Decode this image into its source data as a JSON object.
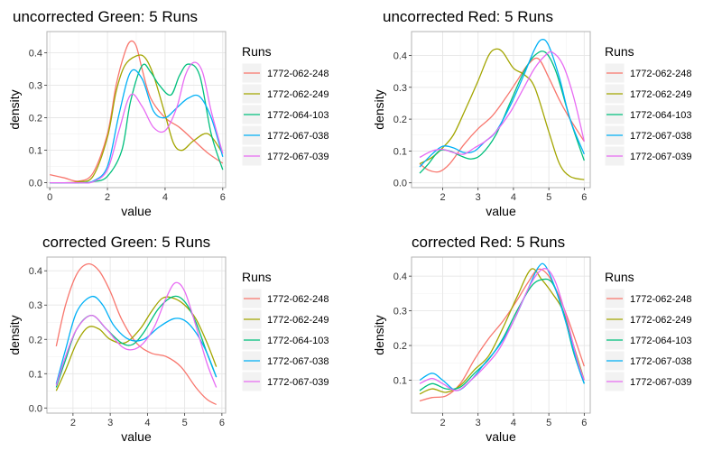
{
  "chart_data": [
    {
      "type": "line",
      "title": "uncorrected Green: 5 Runs",
      "xlabel": "value",
      "ylabel": "density",
      "xlim": [
        -0.1,
        6.1
      ],
      "ylim": [
        -0.015,
        0.465
      ],
      "xticks": [
        0,
        2,
        4,
        6
      ],
      "yticks": [
        0.0,
        0.1,
        0.2,
        0.3,
        0.4
      ],
      "ytick_labels": [
        "0.0",
        "0.1",
        "0.2",
        "0.3",
        "0.4"
      ],
      "grid": true,
      "legend_title": "Runs",
      "legend_position": "right",
      "series": [
        {
          "name": "1772-062-248",
          "color": "#F8766D",
          "x": [
            0,
            0.5,
            1,
            1.5,
            2,
            2.3,
            2.6,
            2.8,
            3,
            3.2,
            3.5,
            4,
            4.5,
            5,
            5.5,
            6
          ],
          "y": [
            0.025,
            0.015,
            0.005,
            0.03,
            0.15,
            0.3,
            0.4,
            0.435,
            0.42,
            0.35,
            0.26,
            0.2,
            0.17,
            0.13,
            0.09,
            0.06
          ]
        },
        {
          "name": "1772-062-249",
          "color": "#A3A500",
          "x": [
            0,
            0.5,
            1,
            1.5,
            2,
            2.3,
            2.6,
            3,
            3.3,
            3.6,
            4,
            4.3,
            4.6,
            5,
            5.5,
            6
          ],
          "y": [
            0,
            0,
            0.003,
            0.02,
            0.14,
            0.28,
            0.36,
            0.39,
            0.385,
            0.33,
            0.21,
            0.12,
            0.1,
            0.13,
            0.15,
            0.09
          ]
        },
        {
          "name": "1772-064-103",
          "color": "#00BF7D",
          "x": [
            0,
            1,
            1.5,
            2,
            2.5,
            2.8,
            3.2,
            3.5,
            3.8,
            4.2,
            4.5,
            4.8,
            5.2,
            5.6,
            6
          ],
          "y": [
            0,
            0,
            0.003,
            0.02,
            0.1,
            0.25,
            0.36,
            0.34,
            0.3,
            0.27,
            0.33,
            0.365,
            0.33,
            0.15,
            0.04
          ]
        },
        {
          "name": "1772-067-038",
          "color": "#00B0F6",
          "x": [
            0,
            1,
            1.5,
            2,
            2.4,
            2.8,
            3.2,
            3.6,
            4,
            4.4,
            4.8,
            5.2,
            5.6,
            6
          ],
          "y": [
            0,
            0,
            0.005,
            0.05,
            0.21,
            0.34,
            0.32,
            0.22,
            0.2,
            0.23,
            0.26,
            0.265,
            0.2,
            0.08
          ]
        },
        {
          "name": "1772-067-039",
          "color": "#E76BF3",
          "x": [
            0,
            1,
            1.5,
            2,
            2.4,
            2.8,
            3.2,
            3.6,
            4,
            4.4,
            4.7,
            5,
            5.3,
            5.6,
            6
          ],
          "y": [
            0,
            0,
            0.003,
            0.04,
            0.16,
            0.27,
            0.235,
            0.17,
            0.16,
            0.23,
            0.33,
            0.37,
            0.34,
            0.22,
            0.09
          ]
        }
      ]
    },
    {
      "type": "line",
      "title": "uncorrected Red: 5 Runs",
      "xlabel": "value",
      "ylabel": "density",
      "xlim": [
        1.12,
        6.17
      ],
      "ylim": [
        -0.015,
        0.475
      ],
      "xticks": [
        2,
        3,
        4,
        5,
        6
      ],
      "yticks": [
        0.0,
        0.1,
        0.2,
        0.3,
        0.4
      ],
      "ytick_labels": [
        "0.0",
        "0.1",
        "0.2",
        "0.3",
        "0.4"
      ],
      "grid": true,
      "legend_title": "Runs",
      "legend_position": "right",
      "series": [
        {
          "name": "1772-062-248",
          "color": "#F8766D",
          "x": [
            1.35,
            1.6,
            1.9,
            2.2,
            2.6,
            3,
            3.4,
            3.8,
            4.1,
            4.4,
            4.7,
            5,
            5.3,
            5.6,
            6
          ],
          "y": [
            0.06,
            0.04,
            0.035,
            0.06,
            0.12,
            0.17,
            0.21,
            0.27,
            0.32,
            0.37,
            0.39,
            0.33,
            0.26,
            0.2,
            0.13
          ]
        },
        {
          "name": "1772-062-249",
          "color": "#A3A500",
          "x": [
            1.35,
            1.7,
            2,
            2.3,
            2.6,
            3,
            3.3,
            3.5,
            3.7,
            4,
            4.3,
            4.6,
            5,
            5.3,
            5.6,
            6
          ],
          "y": [
            0.06,
            0.08,
            0.11,
            0.15,
            0.22,
            0.32,
            0.4,
            0.42,
            0.41,
            0.36,
            0.34,
            0.3,
            0.16,
            0.06,
            0.02,
            0.01
          ]
        },
        {
          "name": "1772-064-103",
          "color": "#00BF7D",
          "x": [
            1.35,
            1.6,
            1.9,
            2.2,
            2.5,
            2.8,
            3.1,
            3.5,
            3.9,
            4.3,
            4.6,
            4.9,
            5.2,
            5.6,
            6
          ],
          "y": [
            0.03,
            0.06,
            0.1,
            0.1,
            0.085,
            0.075,
            0.09,
            0.15,
            0.25,
            0.35,
            0.4,
            0.41,
            0.35,
            0.2,
            0.07
          ]
        },
        {
          "name": "1772-067-038",
          "color": "#00B0F6",
          "x": [
            1.35,
            1.7,
            2,
            2.3,
            2.6,
            2.9,
            3.2,
            3.5,
            3.9,
            4.3,
            4.6,
            4.8,
            5,
            5.3,
            5.6,
            6
          ],
          "y": [
            0.05,
            0.09,
            0.115,
            0.11,
            0.095,
            0.1,
            0.13,
            0.16,
            0.24,
            0.34,
            0.42,
            0.45,
            0.43,
            0.33,
            0.2,
            0.09
          ]
        },
        {
          "name": "1772-067-039",
          "color": "#E76BF3",
          "x": [
            1.35,
            1.7,
            2,
            2.3,
            2.6,
            2.9,
            3.2,
            3.5,
            3.9,
            4.3,
            4.6,
            4.9,
            5.1,
            5.4,
            5.7,
            6
          ],
          "y": [
            0.08,
            0.1,
            0.105,
            0.095,
            0.09,
            0.11,
            0.13,
            0.16,
            0.22,
            0.3,
            0.36,
            0.4,
            0.41,
            0.37,
            0.27,
            0.13
          ]
        }
      ]
    },
    {
      "type": "line",
      "title": "corrected Green: 5 Runs",
      "xlabel": "value",
      "ylabel": "density",
      "xlim": [
        1.3,
        6.1
      ],
      "ylim": [
        -0.015,
        0.44
      ],
      "xticks": [
        2,
        3,
        4,
        5,
        6
      ],
      "yticks": [
        0.0,
        0.1,
        0.2,
        0.3,
        0.4
      ],
      "ytick_labels": [
        "0.0",
        "0.1",
        "0.2",
        "0.3",
        "0.4"
      ],
      "grid": true,
      "legend_title": "Runs",
      "legend_position": "right",
      "series": [
        {
          "name": "1772-062-248",
          "color": "#F8766D",
          "x": [
            1.55,
            1.8,
            2.1,
            2.4,
            2.7,
            3,
            3.3,
            3.7,
            4.1,
            4.5,
            4.9,
            5.3,
            5.6,
            5.85
          ],
          "y": [
            0.18,
            0.3,
            0.39,
            0.42,
            0.4,
            0.34,
            0.26,
            0.19,
            0.16,
            0.15,
            0.12,
            0.06,
            0.025,
            0.01
          ]
        },
        {
          "name": "1772-062-249",
          "color": "#A3A500",
          "x": [
            1.55,
            1.8,
            2.1,
            2.4,
            2.7,
            3,
            3.4,
            3.8,
            4.1,
            4.4,
            4.7,
            5,
            5.3,
            5.6,
            5.85
          ],
          "y": [
            0.05,
            0.11,
            0.19,
            0.235,
            0.23,
            0.2,
            0.19,
            0.23,
            0.28,
            0.32,
            0.32,
            0.3,
            0.26,
            0.19,
            0.12
          ]
        },
        {
          "name": "1772-064-103",
          "color": "#00BF7D",
          "x": [
            1.55,
            1.8,
            2.1,
            2.5,
            2.9,
            3.3,
            3.6,
            3.9,
            4.3,
            4.7,
            5,
            5.3,
            5.6,
            5.85
          ],
          "y": [
            0.06,
            0.14,
            0.23,
            0.27,
            0.23,
            0.19,
            0.185,
            0.22,
            0.29,
            0.325,
            0.31,
            0.25,
            0.16,
            0.09
          ]
        },
        {
          "name": "1772-067-038",
          "color": "#00B0F6",
          "x": [
            1.55,
            1.8,
            2.1,
            2.5,
            2.8,
            3.1,
            3.5,
            3.9,
            4.3,
            4.7,
            5,
            5.3,
            5.6,
            5.85
          ],
          "y": [
            0.07,
            0.17,
            0.28,
            0.325,
            0.3,
            0.24,
            0.2,
            0.2,
            0.235,
            0.26,
            0.255,
            0.22,
            0.16,
            0.09
          ]
        },
        {
          "name": "1772-067-039",
          "color": "#E76BF3",
          "x": [
            1.55,
            1.8,
            2.1,
            2.5,
            2.9,
            3.3,
            3.6,
            3.9,
            4.2,
            4.5,
            4.75,
            5,
            5.3,
            5.6,
            5.85
          ],
          "y": [
            0.065,
            0.15,
            0.23,
            0.27,
            0.23,
            0.18,
            0.17,
            0.19,
            0.24,
            0.32,
            0.365,
            0.34,
            0.24,
            0.13,
            0.06
          ]
        }
      ]
    },
    {
      "type": "line",
      "title": "corrected Red: 5 Runs",
      "xlabel": "value",
      "ylabel": "density",
      "xlim": [
        1.12,
        6.17
      ],
      "ylim": [
        0.005,
        0.455
      ],
      "xticks": [
        2,
        3,
        4,
        5,
        6
      ],
      "yticks": [
        0.1,
        0.2,
        0.3,
        0.4
      ],
      "ytick_labels": [
        "0.1",
        "0.2",
        "0.3",
        "0.4"
      ],
      "grid": true,
      "legend_title": "Runs",
      "legend_position": "right",
      "series": [
        {
          "name": "1772-062-248",
          "color": "#F8766D",
          "x": [
            1.35,
            1.7,
            2.1,
            2.5,
            2.9,
            3.3,
            3.7,
            4.1,
            4.4,
            4.7,
            5,
            5.3,
            5.6,
            6
          ],
          "y": [
            0.04,
            0.05,
            0.055,
            0.09,
            0.16,
            0.22,
            0.27,
            0.33,
            0.38,
            0.42,
            0.4,
            0.34,
            0.26,
            0.14
          ]
        },
        {
          "name": "1772-062-249",
          "color": "#A3A500",
          "x": [
            1.35,
            1.7,
            2.1,
            2.5,
            2.9,
            3.3,
            3.7,
            4.1,
            4.5,
            4.8,
            5.1,
            5.4,
            5.7,
            6
          ],
          "y": [
            0.06,
            0.075,
            0.065,
            0.085,
            0.13,
            0.17,
            0.25,
            0.34,
            0.42,
            0.39,
            0.35,
            0.3,
            0.2,
            0.1
          ]
        },
        {
          "name": "1772-064-103",
          "color": "#00BF7D",
          "x": [
            1.35,
            1.7,
            2.1,
            2.5,
            2.9,
            3.3,
            3.7,
            4.1,
            4.5,
            4.8,
            5.1,
            5.4,
            5.7,
            6
          ],
          "y": [
            0.07,
            0.09,
            0.075,
            0.08,
            0.12,
            0.16,
            0.22,
            0.3,
            0.37,
            0.39,
            0.38,
            0.3,
            0.18,
            0.09
          ]
        },
        {
          "name": "1772-067-038",
          "color": "#00B0F6",
          "x": [
            1.35,
            1.7,
            2,
            2.4,
            2.8,
            3.2,
            3.6,
            4,
            4.4,
            4.7,
            4.9,
            5.2,
            5.5,
            5.8,
            6
          ],
          "y": [
            0.1,
            0.12,
            0.1,
            0.07,
            0.1,
            0.15,
            0.2,
            0.27,
            0.36,
            0.425,
            0.43,
            0.36,
            0.26,
            0.15,
            0.09
          ]
        },
        {
          "name": "1772-067-039",
          "color": "#E76BF3",
          "x": [
            1.35,
            1.7,
            2,
            2.4,
            2.8,
            3.2,
            3.6,
            4,
            4.4,
            4.7,
            4.95,
            5.2,
            5.5,
            5.8,
            6
          ],
          "y": [
            0.09,
            0.105,
            0.09,
            0.07,
            0.1,
            0.14,
            0.19,
            0.27,
            0.36,
            0.41,
            0.42,
            0.38,
            0.28,
            0.16,
            0.1
          ]
        }
      ]
    }
  ]
}
